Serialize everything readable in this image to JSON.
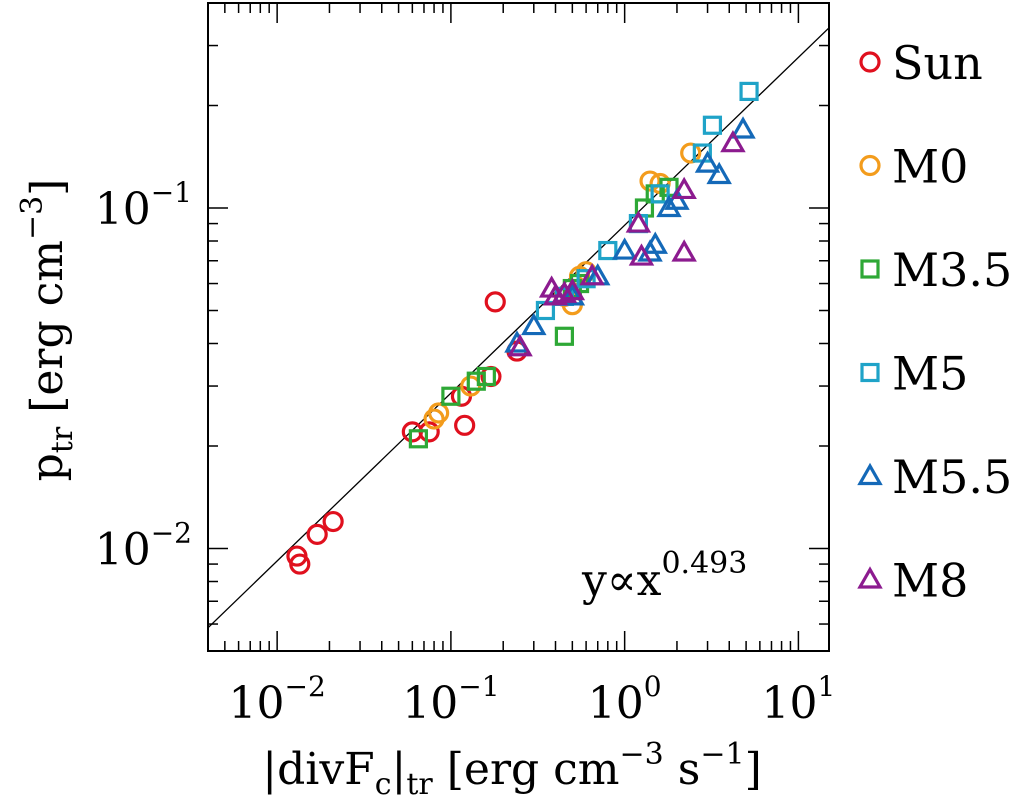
{
  "chart_data": {
    "type": "scatter",
    "xscale": "log",
    "yscale": "log",
    "xlim": [
      0.004,
      15
    ],
    "ylim": [
      0.005,
      0.4
    ],
    "xlabel": {
      "pre": "|divF",
      "sub1": "c",
      "mid": "|",
      "sub2": "tr",
      "post": " [erg cm",
      "sup1": "−3",
      "post2": " s",
      "sup2": "−1",
      "end": "]"
    },
    "ylabel": {
      "pre": "p",
      "sub": "tr",
      "post": " [erg cm",
      "sup": "−3",
      "end": "]"
    },
    "x_ticks": [
      {
        "value": 0.01,
        "base": "10",
        "exp": "-2"
      },
      {
        "value": 0.1,
        "base": "10",
        "exp": "-1"
      },
      {
        "value": 1,
        "base": "10",
        "exp": "0"
      },
      {
        "value": 10,
        "base": "10",
        "exp": "1"
      }
    ],
    "y_ticks": [
      {
        "value": 0.01,
        "base": "10",
        "exp": "-2"
      },
      {
        "value": 0.1,
        "base": "10",
        "exp": "-1"
      }
    ],
    "annotation": {
      "pre": "y∝x",
      "sup": "0.493"
    },
    "fit": {
      "exponent": 0.493,
      "coef": 0.089
    },
    "series": [
      {
        "name": "Sun",
        "marker": "circle",
        "color": "#e0101e",
        "points": [
          [
            0.013,
            0.0095
          ],
          [
            0.0135,
            0.009
          ],
          [
            0.017,
            0.011
          ],
          [
            0.021,
            0.012
          ],
          [
            0.06,
            0.022
          ],
          [
            0.075,
            0.022
          ],
          [
            0.12,
            0.023
          ],
          [
            0.115,
            0.028
          ],
          [
            0.17,
            0.032
          ],
          [
            0.18,
            0.053
          ],
          [
            0.24,
            0.038
          ]
        ]
      },
      {
        "name": "M0",
        "marker": "circle",
        "color": "#f39c1c",
        "points": [
          [
            0.08,
            0.024
          ],
          [
            0.085,
            0.025
          ],
          [
            0.13,
            0.03
          ],
          [
            0.45,
            0.055
          ],
          [
            0.5,
            0.052
          ],
          [
            0.55,
            0.063
          ],
          [
            0.6,
            0.065
          ],
          [
            1.4,
            0.12
          ],
          [
            1.6,
            0.118
          ],
          [
            2.4,
            0.145
          ]
        ]
      },
      {
        "name": "M3.5",
        "marker": "square",
        "color": "#2ea836",
        "points": [
          [
            0.065,
            0.021
          ],
          [
            0.1,
            0.028
          ],
          [
            0.14,
            0.031
          ],
          [
            0.16,
            0.032
          ],
          [
            0.45,
            0.042
          ],
          [
            0.5,
            0.058
          ],
          [
            0.55,
            0.06
          ],
          [
            1.3,
            0.1
          ],
          [
            1.5,
            0.11
          ],
          [
            1.8,
            0.115
          ]
        ]
      },
      {
        "name": "M5",
        "marker": "square",
        "color": "#1fa3c8",
        "points": [
          [
            0.35,
            0.05
          ],
          [
            0.45,
            0.055
          ],
          [
            0.6,
            0.062
          ],
          [
            0.8,
            0.075
          ],
          [
            1.2,
            0.09
          ],
          [
            1.6,
            0.11
          ],
          [
            2.8,
            0.145
          ],
          [
            3.2,
            0.175
          ],
          [
            5.2,
            0.22
          ]
        ]
      },
      {
        "name": "M5.5",
        "marker": "triangle",
        "color": "#1469b8",
        "points": [
          [
            0.24,
            0.04
          ],
          [
            0.3,
            0.045
          ],
          [
            0.5,
            0.055
          ],
          [
            0.7,
            0.063
          ],
          [
            1.0,
            0.075
          ],
          [
            1.4,
            0.074
          ],
          [
            1.5,
            0.078
          ],
          [
            1.8,
            0.1
          ],
          [
            2.0,
            0.105
          ],
          [
            3.0,
            0.135
          ],
          [
            3.5,
            0.125
          ],
          [
            4.8,
            0.17
          ]
        ]
      },
      {
        "name": "M8",
        "marker": "triangle",
        "color": "#8c1b8f",
        "points": [
          [
            0.25,
            0.039
          ],
          [
            0.38,
            0.058
          ],
          [
            0.4,
            0.055
          ],
          [
            0.45,
            0.056
          ],
          [
            0.5,
            0.057
          ],
          [
            0.65,
            0.063
          ],
          [
            1.2,
            0.09
          ],
          [
            1.25,
            0.072
          ],
          [
            2.2,
            0.113
          ],
          [
            2.2,
            0.074
          ],
          [
            4.2,
            0.155
          ]
        ]
      }
    ]
  }
}
